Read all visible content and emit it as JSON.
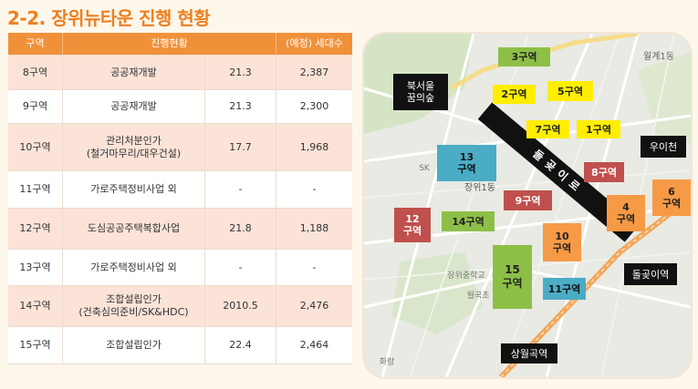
{
  "title": "2-2. 장위뉴타운 진행 현황",
  "table": {
    "headers": [
      "구역",
      "진행현황",
      "",
      "(예정) 세대수"
    ],
    "rows": [
      {
        "zone": "8구역",
        "status": "공공재개발",
        "date": "21.3",
        "units": "2,387"
      },
      {
        "zone": "9구역",
        "status": "공공재개발",
        "date": "21.3",
        "units": "2,300"
      },
      {
        "zone": "10구역",
        "status": "관리처분인가",
        "status2": "(철거마무리/대우건설)",
        "date": "17.7",
        "units": "1,968"
      },
      {
        "zone": "11구역",
        "status": "가로주택정비사업 외",
        "date": "-",
        "units": "-"
      },
      {
        "zone": "12구역",
        "status": "도심공공주택복합사업",
        "date": "21.8",
        "units": "1,188"
      },
      {
        "zone": "13구역",
        "status": "가로주택정비사업 외",
        "date": "-",
        "units": "-"
      },
      {
        "zone": "14구역",
        "status": "조합설립인가",
        "status2": "(건축심의준비/SK&HDC)",
        "date": "2010.5",
        "units": "2,476"
      },
      {
        "zone": "15구역",
        "status": "조합설립인가",
        "date": "22.4",
        "units": "2,464"
      }
    ]
  },
  "map": {
    "zones": {
      "z3": "3구역",
      "z2": "2구역",
      "z5": "5구역",
      "z7": "7구역",
      "z1": "1구역",
      "z13a": "13",
      "z13b": "구역",
      "z8": "8구역",
      "z9": "9구역",
      "z4a": "4",
      "z4b": "구역",
      "z6a": "6",
      "z6b": "구역",
      "z12a": "12",
      "z12b": "구역",
      "z14": "14구역",
      "z10a": "10",
      "z10b": "구역",
      "z15a": "15",
      "z15b": "구역",
      "z11": "11구역"
    },
    "places": {
      "bukseoul_a": "북서울",
      "bukseoul_b": "꿈의숲",
      "uicheon": "우이천",
      "dolgoji": "돌곶이역",
      "sangwol": "상월곡역",
      "road": "돌곶이로"
    },
    "base_labels": {
      "wolgye": "월계1동",
      "jangwi": "장위1동",
      "sk": "SK",
      "hwarang": "화랑",
      "jangwi_school": "장위중학교",
      "wolgok": "월곡초"
    },
    "colors": {
      "green": "#8dbf47",
      "yellow": "#ffee00",
      "red": "#c0504d",
      "orange": "#f79a46",
      "blue": "#4bacc6"
    }
  }
}
